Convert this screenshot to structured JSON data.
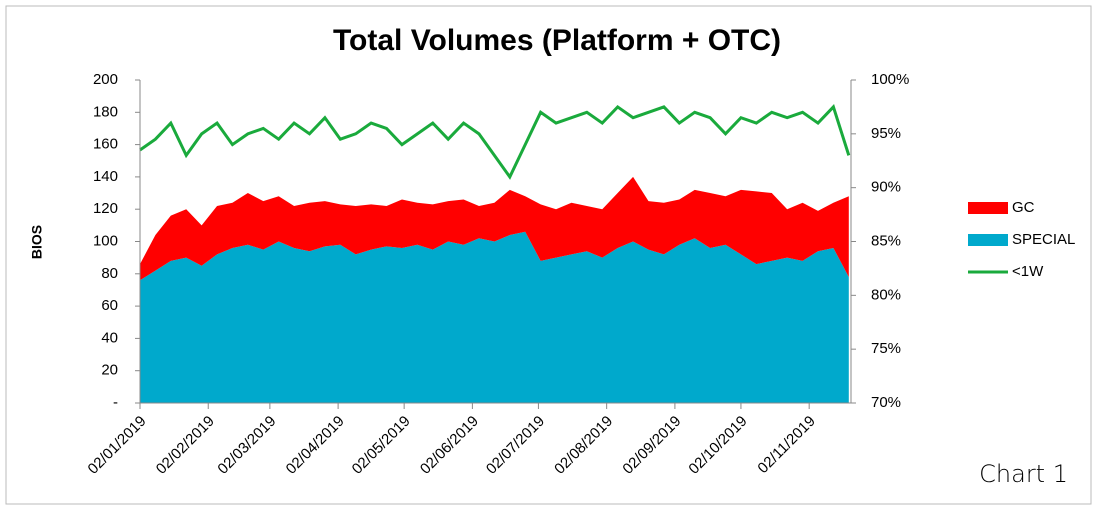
{
  "chart_data": {
    "type": "stacked-area-line",
    "title": "Total Volumes (Platform + OTC)",
    "y_label": "BIOS",
    "caption": "Chart 1",
    "x": [
      "02/01/2019",
      "09/01/2019",
      "16/01/2019",
      "23/01/2019",
      "30/01/2019",
      "06/02/2019",
      "13/02/2019",
      "20/02/2019",
      "27/02/2019",
      "06/03/2019",
      "13/03/2019",
      "20/03/2019",
      "27/03/2019",
      "03/04/2019",
      "10/04/2019",
      "17/04/2019",
      "24/04/2019",
      "01/05/2019",
      "08/05/2019",
      "15/05/2019",
      "22/05/2019",
      "29/05/2019",
      "05/06/2019",
      "12/06/2019",
      "19/06/2019",
      "26/06/2019",
      "03/07/2019",
      "10/07/2019",
      "17/07/2019",
      "24/07/2019",
      "31/07/2019",
      "07/08/2019",
      "14/08/2019",
      "21/08/2019",
      "28/08/2019",
      "04/09/2019",
      "11/09/2019",
      "18/09/2019",
      "25/09/2019",
      "02/10/2019",
      "09/10/2019",
      "16/10/2019",
      "23/10/2019",
      "30/10/2019",
      "06/11/2019",
      "13/11/2019",
      "20/11/2019"
    ],
    "xlim": [
      "02/01/2019",
      "21/11/2019"
    ],
    "xticks": [
      "02/01/2019",
      "02/02/2019",
      "02/03/2019",
      "02/04/2019",
      "02/05/2019",
      "02/06/2019",
      "02/07/2019",
      "02/08/2019",
      "02/09/2019",
      "02/10/2019",
      "02/11/2019"
    ],
    "series": [
      {
        "name": "GC",
        "color": "#ff0000",
        "stack": true,
        "values": [
          10,
          22,
          28,
          30,
          25,
          30,
          28,
          32,
          30,
          28,
          26,
          30,
          28,
          25,
          30,
          28,
          25,
          30,
          26,
          28,
          25,
          28,
          20,
          24,
          28,
          22,
          35,
          30,
          32,
          28,
          30,
          34,
          40,
          30,
          32,
          28,
          30,
          34,
          30,
          40,
          45,
          42,
          30,
          36,
          25,
          28,
          50
        ]
      },
      {
        "name": "SPECIAL",
        "color": "#00a9cc",
        "stack": true,
        "values": [
          76,
          82,
          88,
          90,
          85,
          92,
          96,
          98,
          95,
          100,
          96,
          94,
          97,
          98,
          92,
          95,
          97,
          96,
          98,
          95,
          100,
          98,
          102,
          100,
          104,
          106,
          88,
          90,
          92,
          94,
          90,
          96,
          100,
          95,
          92,
          98,
          102,
          96,
          98,
          92,
          86,
          88,
          90,
          88,
          94,
          96,
          78
        ]
      },
      {
        "name": "<1W",
        "color": "#1aaa3c",
        "axis": "y2",
        "values": [
          93.5,
          94.5,
          96,
          93,
          95,
          96,
          94,
          95,
          95.5,
          94.5,
          96,
          95,
          96.5,
          94.5,
          95,
          96,
          95.5,
          94,
          95,
          96,
          94.5,
          96,
          95,
          93,
          91,
          94,
          97,
          96,
          96.5,
          97,
          96,
          97.5,
          96.5,
          97,
          97.5,
          96,
          97,
          96.5,
          95,
          96.5,
          96,
          97,
          96.5,
          97,
          96,
          97.5,
          93
        ]
      }
    ],
    "ylim": [
      0,
      200
    ],
    "yticks": [
      {
        "value": 0,
        "label": "-"
      },
      20,
      40,
      60,
      80,
      100,
      120,
      140,
      160,
      180,
      200
    ],
    "y2lim": [
      70,
      100
    ],
    "y2ticks": [
      {
        "value": 70,
        "label": "70%"
      },
      {
        "value": 75,
        "label": "75%"
      },
      {
        "value": 80,
        "label": "80%"
      },
      {
        "value": 85,
        "label": "85%"
      },
      {
        "value": 90,
        "label": "90%"
      },
      {
        "value": 95,
        "label": "95%"
      },
      {
        "value": 100,
        "label": "100%"
      }
    ],
    "legend": "right"
  }
}
